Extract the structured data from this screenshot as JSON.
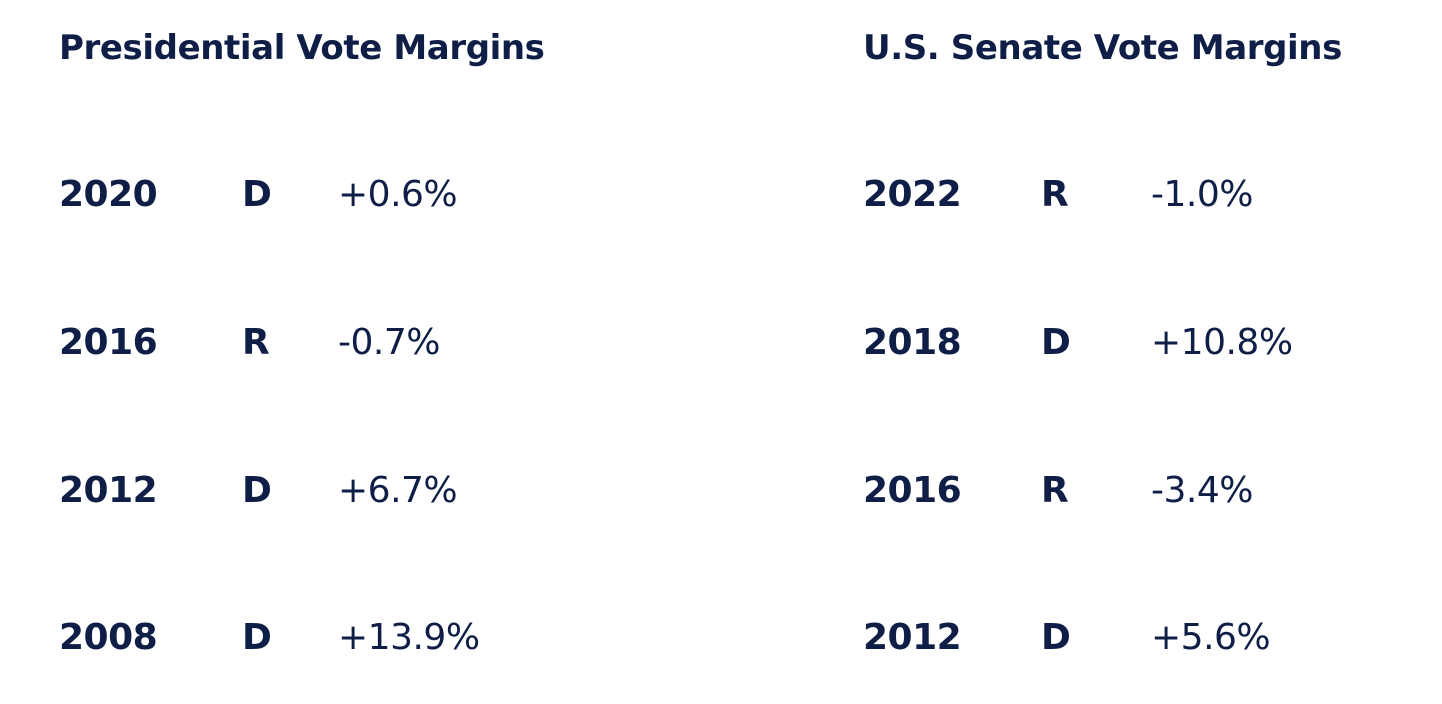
{
  "presidential": {
    "title": "Presidential Vote Margins",
    "rows": [
      {
        "year": "2020",
        "party": "D",
        "margin": "+0.6%"
      },
      {
        "year": "2016",
        "party": "R",
        "margin": "-0.7%"
      },
      {
        "year": "2012",
        "party": "D",
        "margin": "+6.7%"
      },
      {
        "year": "2008",
        "party": "D",
        "margin": "+13.9%"
      }
    ]
  },
  "senate": {
    "title": "U.S. Senate Vote Margins",
    "rows": [
      {
        "year": "2022",
        "party": "R",
        "margin": "-1.0%"
      },
      {
        "year": "2018",
        "party": "D",
        "margin": "+10.8%"
      },
      {
        "year": "2016",
        "party": "R",
        "margin": "-3.4%"
      },
      {
        "year": "2012",
        "party": "D",
        "margin": "+5.6%"
      }
    ]
  },
  "colors": {
    "text": "#0f1e46",
    "background": "#ffffff"
  }
}
